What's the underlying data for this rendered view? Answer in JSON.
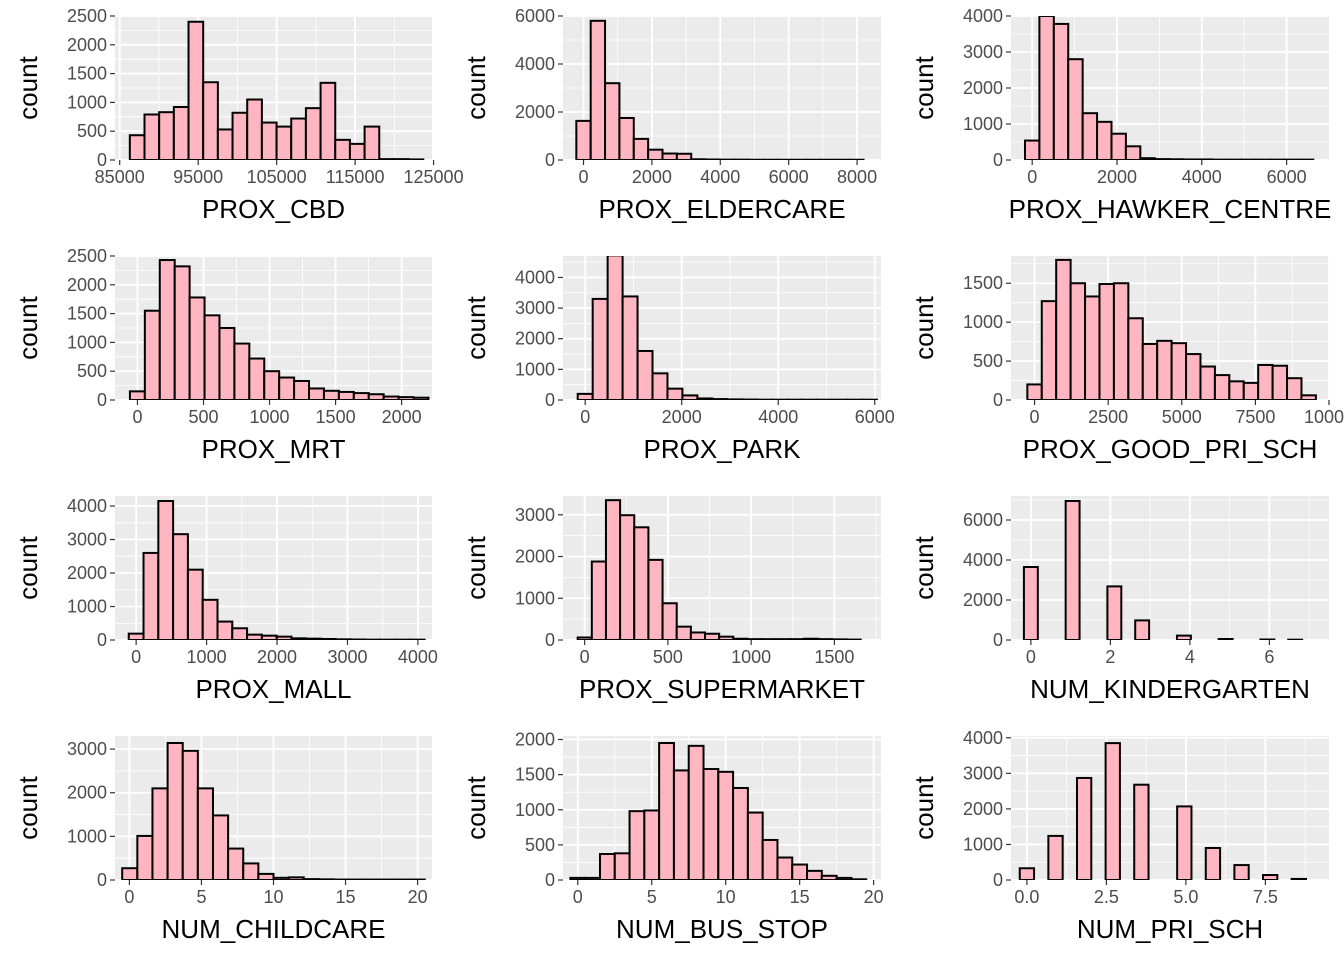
{
  "styles": {
    "panel_bg": "#EBEBEB",
    "grid_major": "#FFFFFF",
    "bar_fill": "#FFB6C1",
    "bar_stroke": "#000000",
    "tick_text": "#4D4D4D"
  },
  "chart_data": [
    {
      "type": "bar",
      "title": "",
      "xlabel": "PROX_CBD",
      "ylabel": "count",
      "xlim": [
        84400,
        124800
      ],
      "ylim": [
        0,
        2500
      ],
      "xticks": [
        85000,
        95000,
        105000,
        115000,
        125000
      ],
      "xtick_labels": [
        "85000",
        "95000",
        "105000",
        "115000",
        "125000"
      ],
      "yticks": [
        0,
        500,
        1000,
        1500,
        2000,
        2500
      ],
      "bin_start": 86290,
      "bin_width": 1870,
      "values": [
        430,
        790,
        830,
        920,
        2400,
        1350,
        530,
        820,
        1050,
        650,
        580,
        720,
        900,
        1340,
        350,
        280,
        580,
        15,
        15,
        10
      ]
    },
    {
      "type": "bar",
      "title": "",
      "xlabel": "PROX_ELDERCARE",
      "ylabel": "count",
      "xlim": [
        -600,
        8700
      ],
      "ylim": [
        0,
        6000
      ],
      "xticks": [
        0,
        2000,
        4000,
        6000,
        8000
      ],
      "xtick_labels": [
        "0",
        "2000",
        "4000",
        "6000",
        "8000"
      ],
      "yticks": [
        0,
        2000,
        4000,
        6000
      ],
      "bin_start": -210,
      "bin_width": 420,
      "values": [
        1630,
        5800,
        3200,
        1750,
        880,
        430,
        270,
        260,
        30,
        20,
        15,
        15,
        10,
        10,
        10,
        10,
        10,
        10,
        10,
        10
      ]
    },
    {
      "type": "bar",
      "title": "",
      "xlabel": "PROX_HAWKER_CENTRE",
      "ylabel": "count",
      "xlim": [
        -500,
        7000
      ],
      "ylim": [
        0,
        4000
      ],
      "xticks": [
        0,
        2000,
        4000,
        6000
      ],
      "xtick_labels": [
        "0",
        "2000",
        "4000",
        "6000"
      ],
      "yticks": [
        0,
        1000,
        2000,
        3000,
        4000
      ],
      "bin_start": -170,
      "bin_width": 340,
      "values": [
        540,
        4000,
        3780,
        2800,
        1300,
        1060,
        730,
        380,
        50,
        25,
        20,
        15,
        15,
        10,
        10,
        10,
        10,
        10,
        10,
        10
      ]
    },
    {
      "type": "bar",
      "title": "",
      "xlabel": "PROX_MRT",
      "ylabel": "count",
      "xlim": [
        -170,
        2230
      ],
      "ylim": [
        0,
        2500
      ],
      "xticks": [
        0,
        500,
        1000,
        1500,
        2000
      ],
      "xtick_labels": [
        "0",
        "500",
        "1000",
        "1500",
        "2000"
      ],
      "yticks": [
        0,
        500,
        1000,
        1500,
        2000,
        2500
      ],
      "bin_start": -57,
      "bin_width": 113,
      "values": [
        150,
        1550,
        2430,
        2320,
        1780,
        1470,
        1250,
        980,
        720,
        500,
        390,
        330,
        200,
        160,
        140,
        120,
        100,
        60,
        50,
        40
      ]
    },
    {
      "type": "bar",
      "title": "",
      "xlabel": "PROX_PARK",
      "ylabel": "count",
      "xlim": [
        -460,
        6130
      ],
      "ylim": [
        0,
        4700
      ],
      "xticks": [
        0,
        2000,
        4000,
        6000
      ],
      "xtick_labels": [
        "0",
        "2000",
        "4000",
        "6000"
      ],
      "yticks": [
        0,
        1000,
        2000,
        3000,
        4000
      ],
      "bin_start": -155,
      "bin_width": 310,
      "values": [
        200,
        3300,
        4720,
        3380,
        1600,
        870,
        370,
        150,
        50,
        30,
        20,
        15,
        10,
        10,
        10,
        10,
        10,
        10,
        10,
        10
      ]
    },
    {
      "type": "bar",
      "title": "",
      "xlabel": "PROX_GOOD_PRI_SCH",
      "ylabel": "count",
      "xlim": [
        -800,
        10000
      ],
      "ylim": [
        0,
        1850
      ],
      "xticks": [
        0,
        2500,
        5000,
        7500,
        10000
      ],
      "xtick_labels": [
        "0",
        "2500",
        "5000",
        "7500",
        "10000"
      ],
      "yticks": [
        0,
        500,
        1000,
        1500
      ],
      "bin_start": -245,
      "bin_width": 490,
      "values": [
        200,
        1270,
        1800,
        1500,
        1330,
        1490,
        1500,
        1050,
        720,
        760,
        730,
        590,
        430,
        320,
        240,
        220,
        450,
        440,
        280,
        60
      ]
    },
    {
      "type": "bar",
      "title": "",
      "xlabel": "PROX_MALL",
      "ylabel": "count",
      "xlim": [
        -300,
        4200
      ],
      "ylim": [
        0,
        4300
      ],
      "xticks": [
        0,
        1000,
        2000,
        3000,
        4000
      ],
      "xtick_labels": [
        "0",
        "1000",
        "2000",
        "3000",
        "4000"
      ],
      "yticks": [
        0,
        1000,
        2000,
        3000,
        4000
      ],
      "bin_start": -105,
      "bin_width": 210,
      "values": [
        190,
        2600,
        4150,
        3160,
        2100,
        1200,
        550,
        350,
        160,
        130,
        100,
        50,
        40,
        30,
        20,
        15,
        10,
        10,
        10,
        10
      ]
    },
    {
      "type": "bar",
      "title": "",
      "xlabel": "PROX_SUPERMARKET",
      "ylabel": "count",
      "xlim": [
        -130,
        1780
      ],
      "ylim": [
        0,
        3450
      ],
      "xticks": [
        0,
        500,
        1000,
        1500
      ],
      "xtick_labels": [
        "0",
        "500",
        "1000",
        "1500"
      ],
      "yticks": [
        0,
        1000,
        2000,
        3000
      ],
      "bin_start": -42,
      "bin_width": 85,
      "values": [
        60,
        1880,
        3350,
        2990,
        2700,
        1920,
        880,
        320,
        180,
        150,
        80,
        30,
        20,
        20,
        20,
        20,
        30,
        20,
        15,
        10
      ]
    },
    {
      "type": "bar",
      "title": "",
      "xlabel": "NUM_KINDERGARTEN",
      "ylabel": "count",
      "xlim": [
        -0.5,
        7.5
      ],
      "ylim": [
        0,
        7200
      ],
      "xticks": [
        0,
        2,
        4,
        6
      ],
      "xtick_labels": [
        "0",
        "2",
        "4",
        "6"
      ],
      "yticks": [
        0,
        2000,
        4000,
        6000
      ],
      "bin_start": -0.175,
      "bin_width": 0.35,
      "values": [
        3650,
        0,
        0,
        6950,
        0,
        0,
        2680,
        0,
        980,
        0,
        0,
        220,
        0,
        0,
        50,
        0,
        0,
        25,
        0,
        15
      ]
    },
    {
      "type": "bar",
      "title": "",
      "xlabel": "NUM_CHILDCARE",
      "ylabel": "count",
      "xlim": [
        -1,
        21
      ],
      "ylim": [
        0,
        3300
      ],
      "xticks": [
        0,
        5,
        10,
        15,
        20
      ],
      "xtick_labels": [
        "0",
        "5",
        "10",
        "15",
        "20"
      ],
      "yticks": [
        0,
        1000,
        2000,
        3000
      ],
      "bin_start": -0.5,
      "bin_width": 1.05,
      "values": [
        270,
        1010,
        2100,
        3140,
        2960,
        2100,
        1480,
        720,
        380,
        140,
        50,
        60,
        20,
        15,
        10,
        10,
        10,
        10,
        10,
        10
      ]
    },
    {
      "type": "bar",
      "title": "",
      "xlabel": "NUM_BUS_STOP",
      "ylabel": "count",
      "xlim": [
        -1,
        20.5
      ],
      "ylim": [
        0,
        2050
      ],
      "xticks": [
        0,
        5,
        10,
        15,
        20
      ],
      "xtick_labels": [
        "0",
        "5",
        "10",
        "15",
        "20"
      ],
      "yticks": [
        0,
        500,
        1000,
        1500,
        2000
      ],
      "bin_start": -0.5,
      "bin_width": 1.0,
      "values": [
        30,
        30,
        370,
        380,
        980,
        990,
        1950,
        1560,
        1910,
        1580,
        1540,
        1310,
        960,
        570,
        320,
        220,
        130,
        60,
        30,
        10
      ]
    },
    {
      "type": "bar",
      "title": "",
      "xlabel": "NUM_PRI_SCH",
      "ylabel": "count",
      "xlim": [
        -0.5,
        9.5
      ],
      "ylim": [
        0,
        4050
      ],
      "xticks": [
        0,
        2.5,
        5,
        7.5
      ],
      "xtick_labels": [
        "0.0",
        "2.5",
        "5.0",
        "7.5"
      ],
      "yticks": [
        0,
        1000,
        2000,
        3000,
        4000
      ],
      "bin_start": -0.225,
      "bin_width": 0.45,
      "values": [
        330,
        0,
        1240,
        0,
        2870,
        0,
        3850,
        0,
        2680,
        0,
        0,
        2070,
        0,
        900,
        0,
        420,
        0,
        140,
        0,
        30
      ]
    }
  ]
}
